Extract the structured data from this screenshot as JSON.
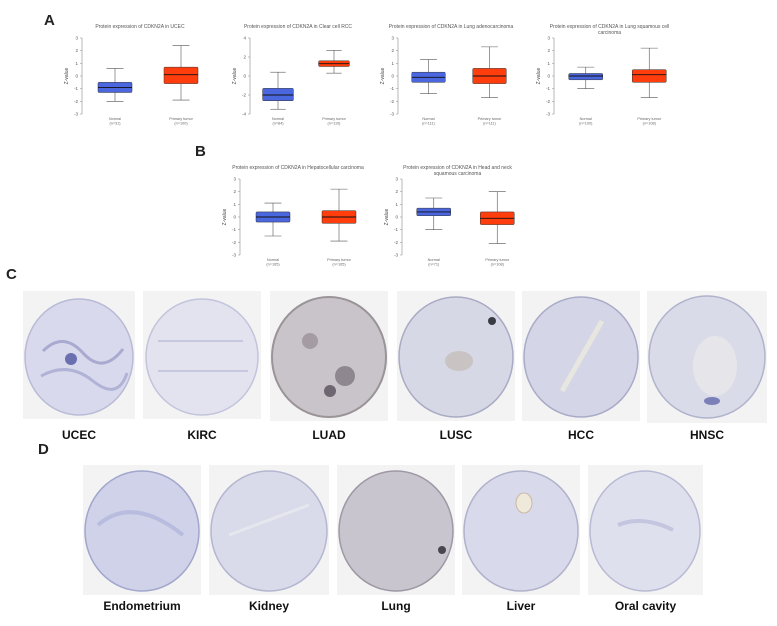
{
  "panels": {
    "A": "A",
    "B": "B",
    "C": "C",
    "D": "D"
  },
  "colors": {
    "normal": "#4a67e0",
    "tumor": "#ff3d0d",
    "whisker": "#555555",
    "axis": "#888888"
  },
  "chart_data": [
    {
      "type": "box",
      "title": "Protein expression of CDKN2A in UCEC",
      "ylabel": "Z-value",
      "ylim": [
        -3,
        3
      ],
      "yticks": [
        "3",
        "2",
        "1",
        "0",
        "-1",
        "-2",
        "-3"
      ],
      "categories": [
        {
          "name": "Normal",
          "n": "(n=31)"
        },
        {
          "name": "Primary tumor",
          "n": "(n=100)"
        }
      ],
      "boxes": [
        {
          "min": -2.0,
          "q1": -1.3,
          "median": -0.9,
          "q3": -0.5,
          "max": 0.6
        },
        {
          "min": -1.9,
          "q1": -0.6,
          "median": 0.1,
          "q3": 0.7,
          "max": 2.4
        }
      ]
    },
    {
      "type": "box",
      "title": "Protein expression of CDKN2A in Clear cell RCC",
      "ylabel": "Z-value",
      "ylim": [
        -4,
        4
      ],
      "yticks": [
        "4",
        "2",
        "0",
        "-2",
        "-4"
      ],
      "categories": [
        {
          "name": "Normal",
          "n": "(n=84)"
        },
        {
          "name": "Primary tumor",
          "n": "(n=110)"
        }
      ],
      "boxes": [
        {
          "min": -3.5,
          "q1": -2.6,
          "median": -2.0,
          "q3": -1.3,
          "max": 0.4
        },
        {
          "min": 0.3,
          "q1": 1.0,
          "median": 1.3,
          "q3": 1.6,
          "max": 2.7
        }
      ]
    },
    {
      "type": "box",
      "title": "Protein expression of CDKN2A in Lung adenocarcinoma",
      "ylabel": "Z-value",
      "ylim": [
        -3,
        3
      ],
      "yticks": [
        "3",
        "2",
        "1",
        "0",
        "-1",
        "-2",
        "-3"
      ],
      "categories": [
        {
          "name": "Normal",
          "n": "(n=111)"
        },
        {
          "name": "Primary tumor",
          "n": "(n=111)"
        }
      ],
      "boxes": [
        {
          "min": -1.4,
          "q1": -0.5,
          "median": -0.1,
          "q3": 0.3,
          "max": 1.3
        },
        {
          "min": -1.7,
          "q1": -0.6,
          "median": 0.0,
          "q3": 0.6,
          "max": 2.3
        }
      ]
    },
    {
      "type": "box",
      "title": "Protein expression of CDKN2A in Lung squamous cell carcinoma",
      "ylabel": "Z-value",
      "ylim": [
        -3,
        3
      ],
      "yticks": [
        "3",
        "2",
        "1",
        "0",
        "-1",
        "-2",
        "-3"
      ],
      "categories": [
        {
          "name": "Normal",
          "n": "(n=100)"
        },
        {
          "name": "Primary tumor",
          "n": "(n=108)"
        }
      ],
      "boxes": [
        {
          "min": -1.0,
          "q1": -0.3,
          "median": 0.0,
          "q3": 0.2,
          "max": 0.7
        },
        {
          "min": -1.7,
          "q1": -0.5,
          "median": 0.1,
          "q3": 0.5,
          "max": 2.2
        }
      ]
    },
    {
      "type": "box",
      "title": "Protein expression of CDKN2A in Hepatocellular carcinoma",
      "ylabel": "Z-value",
      "ylim": [
        -3,
        3
      ],
      "yticks": [
        "3",
        "2",
        "1",
        "0",
        "-1",
        "-2",
        "-3"
      ],
      "categories": [
        {
          "name": "Normal",
          "n": "(n=165)"
        },
        {
          "name": "Primary tumor",
          "n": "(n=165)"
        }
      ],
      "boxes": [
        {
          "min": -1.5,
          "q1": -0.4,
          "median": 0.0,
          "q3": 0.4,
          "max": 1.1
        },
        {
          "min": -1.9,
          "q1": -0.5,
          "median": 0.0,
          "q3": 0.5,
          "max": 2.2
        }
      ]
    },
    {
      "type": "box",
      "title": "Protein expression of CDKN2A in Head and neck squamous carcinoma",
      "ylabel": "Z-value",
      "ylim": [
        -3,
        3
      ],
      "yticks": [
        "3",
        "2",
        "1",
        "0",
        "-1",
        "-2",
        "-3"
      ],
      "categories": [
        {
          "name": "Normal",
          "n": "(n=71)"
        },
        {
          "name": "Primary tumor",
          "n": "(n=108)"
        }
      ],
      "boxes": [
        {
          "min": -1.0,
          "q1": 0.1,
          "median": 0.4,
          "q3": 0.7,
          "max": 1.5
        },
        {
          "min": -2.1,
          "q1": -0.6,
          "median": -0.1,
          "q3": 0.4,
          "max": 2.0
        }
      ]
    }
  ],
  "tissues_C": [
    "UCEC",
    "KIRC",
    "LUAD",
    "LUSC",
    "HCC",
    "HNSC"
  ],
  "tissues_D": [
    "Endometrium",
    "Kidney",
    "Lung",
    "Liver",
    "Oral cavity"
  ]
}
